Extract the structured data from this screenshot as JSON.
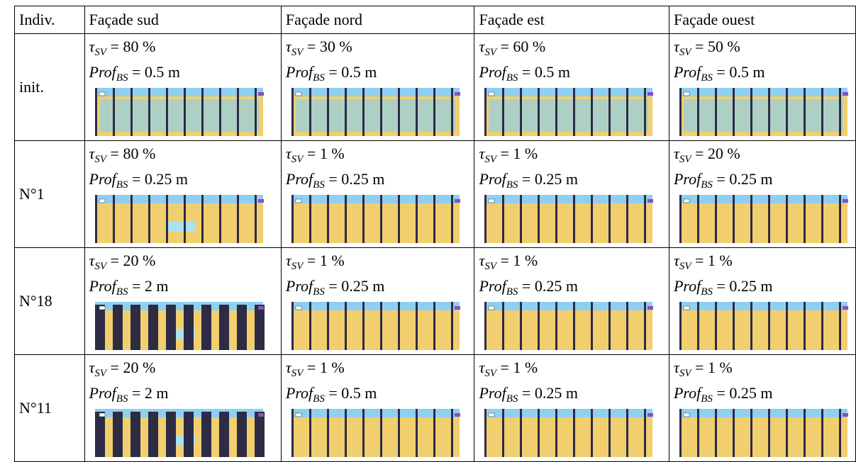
{
  "table": {
    "header": [
      "Indiv.",
      "Façade sud",
      "Façade nord",
      "Façade est",
      "Façade ouest"
    ],
    "rows": [
      {
        "label": "init.",
        "cells": [
          {
            "tau": {
              "sym": "τ",
              "sub": "SV",
              "rest": " = 80 %"
            },
            "prof": {
              "sym": "Prof",
              "sub": "BS",
              "rest": " = 0.5 m"
            }
          },
          {
            "tau": {
              "sym": "τ",
              "sub": "SV",
              "rest": " = 30 %"
            },
            "prof": {
              "sym": "Prof",
              "sub": "BS",
              "rest": " = 0.5 m"
            }
          },
          {
            "tau": {
              "sym": "τ",
              "sub": "SV",
              "rest": " = 60 %"
            },
            "prof": {
              "sym": "Prof",
              "sub": "BS",
              "rest": " = 0.5 m"
            }
          },
          {
            "tau": {
              "sym": "τ",
              "sub": "SV",
              "rest": " = 50 %"
            },
            "prof": {
              "sym": "Prof",
              "sub": "BS",
              "rest": " = 0.5 m"
            }
          }
        ]
      },
      {
        "label": "N°1",
        "cells": [
          {
            "tau": {
              "sym": "τ",
              "sub": "SV",
              "rest": " = 80 %"
            },
            "prof": {
              "sym": "Prof",
              "sub": "BS",
              "rest": " = 0.25 m"
            }
          },
          {
            "tau": {
              "sym": "τ",
              "sub": "SV",
              "rest": " = 1 %"
            },
            "prof": {
              "sym": "Prof",
              "sub": "BS",
              "rest": " = 0.25 m"
            }
          },
          {
            "tau": {
              "sym": "τ",
              "sub": "SV",
              "rest": " = 1 %"
            },
            "prof": {
              "sym": "Prof",
              "sub": "BS",
              "rest": " = 0.25 m"
            }
          },
          {
            "tau": {
              "sym": "τ",
              "sub": "SV",
              "rest": " = 20 %"
            },
            "prof": {
              "sym": "Prof",
              "sub": "BS",
              "rest": " = 0.25 m"
            }
          }
        ]
      },
      {
        "label": "N°18",
        "cells": [
          {
            "tau": {
              "sym": "τ",
              "sub": "SV",
              "rest": " = 20 %"
            },
            "prof": {
              "sym": "Prof",
              "sub": "BS",
              "rest": " = 2 m"
            }
          },
          {
            "tau": {
              "sym": "τ",
              "sub": "SV",
              "rest": " = 1 %"
            },
            "prof": {
              "sym": "Prof",
              "sub": "BS",
              "rest": " = 0.25 m"
            }
          },
          {
            "tau": {
              "sym": "τ",
              "sub": "SV",
              "rest": " = 1 %"
            },
            "prof": {
              "sym": "Prof",
              "sub": "BS",
              "rest": " = 0.25 m"
            }
          },
          {
            "tau": {
              "sym": "τ",
              "sub": "SV",
              "rest": " = 1 %"
            },
            "prof": {
              "sym": "Prof",
              "sub": "BS",
              "rest": " = 0.25 m"
            }
          }
        ]
      },
      {
        "label": "N°11",
        "cells": [
          {
            "tau": {
              "sym": "τ",
              "sub": "SV",
              "rest": " = 20 %"
            },
            "prof": {
              "sym": "Prof",
              "sub": "BS",
              "rest": " = 2 m"
            }
          },
          {
            "tau": {
              "sym": "τ",
              "sub": "SV",
              "rest": " = 1 %"
            },
            "prof": {
              "sym": "Prof",
              "sub": "BS",
              "rest": " = 0.5 m"
            }
          },
          {
            "tau": {
              "sym": "τ",
              "sub": "SV",
              "rest": " = 1 %"
            },
            "prof": {
              "sym": "Prof",
              "sub": "BS",
              "rest": " = 0.25 m"
            }
          },
          {
            "tau": {
              "sym": "τ",
              "sub": "SV",
              "rest": " = 1 %"
            },
            "prof": {
              "sym": "Prof",
              "sub": "BS",
              "rest": " = 0.25 m"
            }
          }
        ]
      }
    ]
  }
}
